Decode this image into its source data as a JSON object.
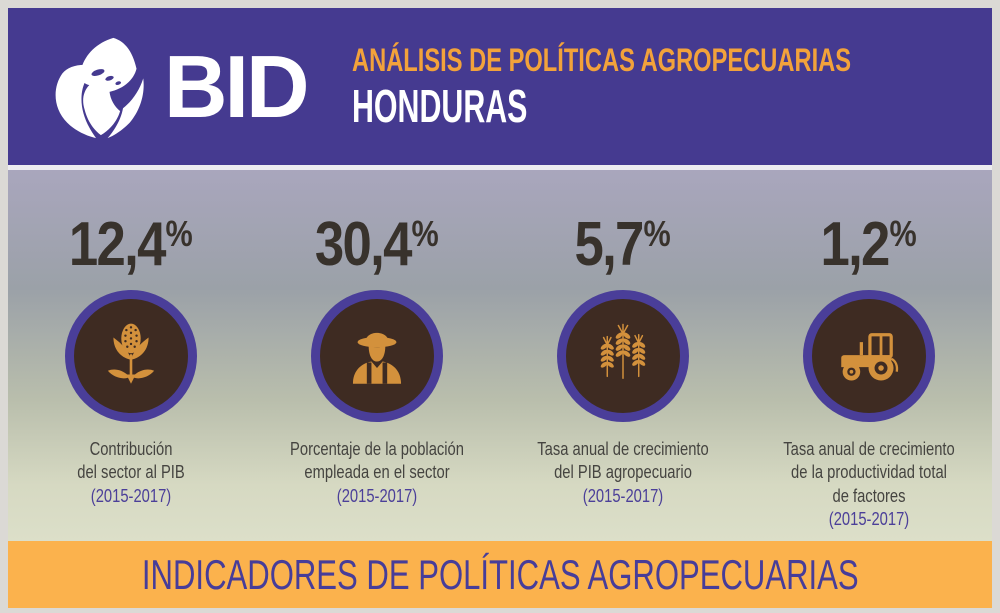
{
  "header": {
    "logo_text": "BID",
    "title_line1": "ANÁLISIS DE POLÍTICAS AGROPECUARIAS",
    "title_line2": "HONDURAS"
  },
  "stats": [
    {
      "value": "12,4",
      "percent_sign": "%",
      "icon": "corn-icon",
      "caption_lines": [
        "Contribución",
        "del sector al PIB"
      ],
      "period": "(2015-2017)"
    },
    {
      "value": "30,4",
      "percent_sign": "%",
      "icon": "farmer-icon",
      "caption_lines": [
        "Porcentaje de la población",
        "empleada en el sector"
      ],
      "period": "(2015-2017)"
    },
    {
      "value": "5,7",
      "percent_sign": "%",
      "icon": "wheat-icon",
      "caption_lines": [
        "Tasa anual de crecimiento",
        "del PIB agropecuario"
      ],
      "period": "(2015-2017)"
    },
    {
      "value": "1,2",
      "percent_sign": "%",
      "icon": "tractor-icon",
      "caption_lines": [
        "Tasa anual de crecimiento",
        "de la productividad total",
        "de factores"
      ],
      "period": "(2015-2017)"
    }
  ],
  "footer": {
    "title": "INDICADORES DE POLÍTICAS AGROPECUARIAS"
  },
  "colors": {
    "header_bg": "#453a90",
    "title_orange": "#f2a23b",
    "divider_orange": "#e8873c",
    "band_orange": "#fbb24d",
    "band_text_purple": "#473d99",
    "circle_ring_purple": "#4a3e99",
    "circle_bg_brown": "#3e2b22",
    "icon_orange": "#d3913c",
    "stat_number": "#38322c",
    "caption_text": "#454440",
    "period_purple": "#4b3f99",
    "frame_gray": "#dbd9d5"
  }
}
